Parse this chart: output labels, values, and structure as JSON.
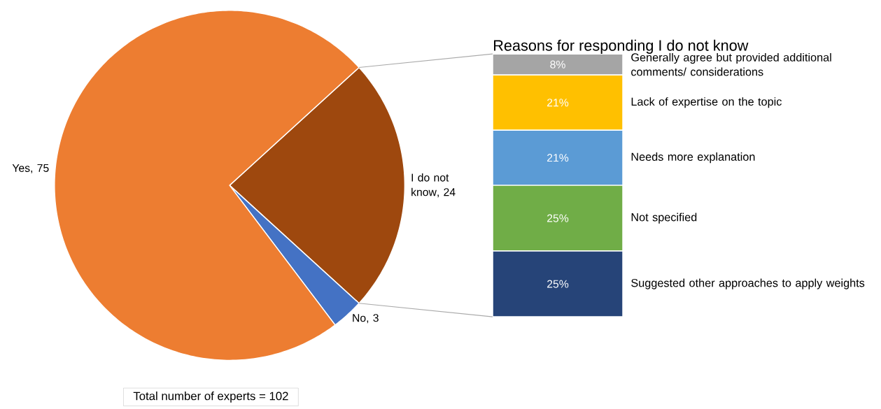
{
  "chart_data": [
    {
      "type": "pie",
      "categories": [
        "I do not know",
        "No",
        "Yes"
      ],
      "values": [
        24,
        3,
        75
      ],
      "colors": [
        "#9e480e",
        "#4472c4",
        "#ed7d31"
      ],
      "value_labels": [
        ", 24",
        ", 3",
        ", 75"
      ],
      "annotations": [
        "Total number of experts = 102"
      ]
    },
    {
      "type": "bar",
      "title": "Reasons for responding I do not know",
      "categories": [
        null
      ],
      "stacked": true,
      "tick_labels": false,
      "series": [
        {
          "name": "Suggested other approaches to apply weights",
          "color": "#264478",
          "values": [
            25
          ],
          "value_labels": [
            "25%"
          ]
        },
        {
          "name": "Not specified",
          "color": "#70ad47",
          "values": [
            25
          ],
          "value_labels": [
            "25%"
          ]
        },
        {
          "name": "Needs more explanation",
          "color": "#5b9bd5",
          "values": [
            21
          ],
          "value_labels": [
            "21%"
          ]
        },
        {
          "name": "Lack of expertise on the topic",
          "color": "#ffc000",
          "values": [
            21
          ],
          "value_labels": [
            "21%"
          ]
        },
        {
          "name": "Generally agree but provided additional comments/ considerations",
          "color": "#a5a5a5",
          "values": [
            8
          ],
          "value_labels": [
            "8%"
          ]
        }
      ]
    }
  ]
}
